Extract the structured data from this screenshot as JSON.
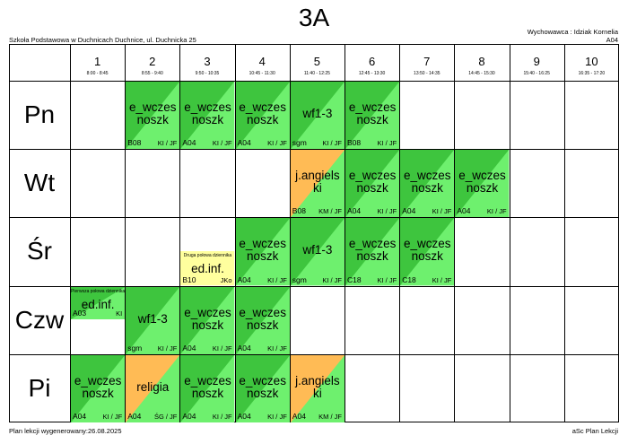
{
  "class_name": "3A",
  "school": "Szkoła Podstawowa w Duchnicach Duchnice, ul. Duchnicka 25",
  "homeroom_teacher": "Wychowawca : Idziak Kornelia",
  "homeroom_room": "A04",
  "footer_generated": "Plan lekcji wygenerowany:26.08.2025",
  "footer_app": "aSc Plan Lekcji",
  "colors": {
    "green_dark": "#3ec53e",
    "green_light": "#6ef06e",
    "orange": "#ffbb55",
    "yellow": "#ffff9e"
  },
  "periods": [
    {
      "num": "1",
      "time": "8:00 - 8:45"
    },
    {
      "num": "2",
      "time": "8:55 - 9:40"
    },
    {
      "num": "3",
      "time": "9:50 - 10:35"
    },
    {
      "num": "4",
      "time": "10:45 - 11:30"
    },
    {
      "num": "5",
      "time": "11:40 - 12:25"
    },
    {
      "num": "6",
      "time": "12:45 - 13:30"
    },
    {
      "num": "7",
      "time": "13:50 - 14:35"
    },
    {
      "num": "8",
      "time": "14:45 - 15:30"
    },
    {
      "num": "9",
      "time": "15:40 - 16:25"
    },
    {
      "num": "10",
      "time": "16:35 - 17:20"
    }
  ],
  "days": [
    "Pn",
    "Wt",
    "Śr",
    "Czw",
    "Pi"
  ],
  "lessons": [
    {
      "day": 0,
      "period": 1,
      "subject": "e_wczesnoszk",
      "room": "B08",
      "teacher": "KI / JF",
      "color": "green"
    },
    {
      "day": 0,
      "period": 2,
      "subject": "e_wczesnoszk",
      "room": "A04",
      "teacher": "KI / JF",
      "color": "green"
    },
    {
      "day": 0,
      "period": 3,
      "subject": "e_wczesnoszk",
      "room": "A04",
      "teacher": "KI / JF",
      "color": "green"
    },
    {
      "day": 0,
      "period": 4,
      "subject": "wf1-3",
      "room": "sgm",
      "teacher": "KI / JF",
      "color": "green"
    },
    {
      "day": 0,
      "period": 5,
      "subject": "e_wczesnoszk",
      "room": "B08",
      "teacher": "KI / JF",
      "color": "green"
    },
    {
      "day": 1,
      "period": 4,
      "subject": "j.angielski",
      "room": "B08",
      "teacher": "KM / JF",
      "color": "orange"
    },
    {
      "day": 1,
      "period": 5,
      "subject": "e_wczesnoszk",
      "room": "A04",
      "teacher": "KI / JF",
      "color": "green"
    },
    {
      "day": 1,
      "period": 6,
      "subject": "e_wczesnoszk",
      "room": "A04",
      "teacher": "KI / JF",
      "color": "green"
    },
    {
      "day": 1,
      "period": 7,
      "subject": "e_wczesnoszk",
      "room": "A04",
      "teacher": "KI / JF",
      "color": "green"
    },
    {
      "day": 2,
      "period": 2,
      "subject": "ed.inf.",
      "room": "B10",
      "teacher": "JKo",
      "color": "yellow",
      "half": "bottom",
      "note": "Druga połowa dziennika"
    },
    {
      "day": 2,
      "period": 3,
      "subject": "e_wczesnoszk",
      "room": "A04",
      "teacher": "KI / JF",
      "color": "green"
    },
    {
      "day": 2,
      "period": 4,
      "subject": "wf1-3",
      "room": "sgm",
      "teacher": "KI / JF",
      "color": "green"
    },
    {
      "day": 2,
      "period": 5,
      "subject": "e_wczesnoszk",
      "room": "C18",
      "teacher": "KI / JF",
      "color": "green"
    },
    {
      "day": 2,
      "period": 6,
      "subject": "e_wczesnoszk",
      "room": "C18",
      "teacher": "KI / JF",
      "color": "green"
    },
    {
      "day": 3,
      "period": 0,
      "subject": "ed.inf.",
      "room": "A03",
      "teacher": "KI",
      "color": "green",
      "half": "top",
      "note": "Pierwsza połowa dziennika"
    },
    {
      "day": 3,
      "period": 1,
      "subject": "wf1-3",
      "room": "sgm",
      "teacher": "KI / JF",
      "color": "green"
    },
    {
      "day": 3,
      "period": 2,
      "subject": "e_wczesnoszk",
      "room": "A04",
      "teacher": "KI / JF",
      "color": "green"
    },
    {
      "day": 3,
      "period": 3,
      "subject": "e_wczesnoszk",
      "room": "A04",
      "teacher": "KI / JF",
      "color": "green"
    },
    {
      "day": 4,
      "period": 0,
      "subject": "e_wczesnoszk",
      "room": "A04",
      "teacher": "KI / JF",
      "color": "green"
    },
    {
      "day": 4,
      "period": 1,
      "subject": "religia",
      "room": "A04",
      "teacher": "ŚG / JF",
      "color": "orange"
    },
    {
      "day": 4,
      "period": 2,
      "subject": "e_wczesnoszk",
      "room": "A04",
      "teacher": "KI / JF",
      "color": "green"
    },
    {
      "day": 4,
      "period": 3,
      "subject": "e_wczesnoszk",
      "room": "A04",
      "teacher": "KI / JF",
      "color": "green"
    },
    {
      "day": 4,
      "period": 4,
      "subject": "j.angielski",
      "room": "A04",
      "teacher": "KM / JF",
      "color": "orange"
    }
  ]
}
